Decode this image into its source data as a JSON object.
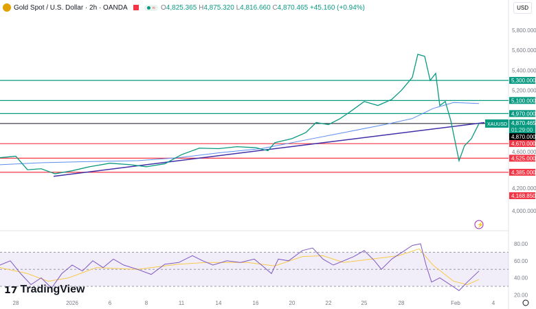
{
  "header": {
    "symbol": "Gold Spot / U.S. Dollar · 2h · OANDA",
    "o_label": "O",
    "o": "4,825.365",
    "h_label": "H",
    "h": "4,875.320",
    "l_label": "L",
    "l": "4,816.660",
    "c_label": "C",
    "c": "4,870.465",
    "change": "+45.160 (+0.94%)",
    "currency": "USD"
  },
  "brand": "TradingView",
  "chart_data": {
    "type": "line",
    "title": "Gold Spot / U.S. Dollar 2h",
    "price_axis": {
      "ylim": [
        3950,
        5900
      ],
      "ticks": [
        "5,800.000",
        "5,600.000",
        "5,400.000",
        "5,200.000",
        "4,600.000",
        "4,200.000",
        "4,000.000"
      ],
      "tick_values": [
        5800,
        5600,
        5400,
        5200,
        4600,
        4200,
        4000
      ]
    },
    "x_ticks": [
      {
        "label": "28",
        "t": 23
      },
      {
        "label": "2026",
        "t": 105
      },
      {
        "label": "6",
        "t": 160
      },
      {
        "label": "8",
        "t": 213
      },
      {
        "label": "11",
        "t": 264
      },
      {
        "label": "14",
        "t": 318
      },
      {
        "label": "16",
        "t": 372
      },
      {
        "label": "20",
        "t": 425
      },
      {
        "label": "22",
        "t": 478
      },
      {
        "label": "25",
        "t": 530
      },
      {
        "label": "28",
        "t": 584
      },
      {
        "label": "Feb",
        "t": 663
      },
      {
        "label": "4",
        "t": 718
      }
    ],
    "xlim": [
      0,
      740
    ],
    "close": [
      [
        0,
        4530
      ],
      [
        23,
        4545
      ],
      [
        40,
        4410
      ],
      [
        60,
        4420
      ],
      [
        80,
        4370
      ],
      [
        105,
        4400
      ],
      [
        130,
        4440
      ],
      [
        160,
        4475
      ],
      [
        190,
        4460
      ],
      [
        213,
        4440
      ],
      [
        240,
        4470
      ],
      [
        264,
        4560
      ],
      [
        290,
        4625
      ],
      [
        318,
        4620
      ],
      [
        345,
        4640
      ],
      [
        372,
        4630
      ],
      [
        390,
        4600
      ],
      [
        400,
        4680
      ],
      [
        425,
        4720
      ],
      [
        445,
        4780
      ],
      [
        460,
        4880
      ],
      [
        478,
        4860
      ],
      [
        495,
        4920
      ],
      [
        510,
        4990
      ],
      [
        530,
        5090
      ],
      [
        550,
        5050
      ],
      [
        570,
        5110
      ],
      [
        584,
        5200
      ],
      [
        600,
        5330
      ],
      [
        608,
        5560
      ],
      [
        618,
        5540
      ],
      [
        626,
        5300
      ],
      [
        634,
        5370
      ],
      [
        640,
        5050
      ],
      [
        648,
        5090
      ],
      [
        656,
        4900
      ],
      [
        662,
        4700
      ],
      [
        668,
        4500
      ],
      [
        676,
        4650
      ],
      [
        686,
        4720
      ],
      [
        697,
        4870
      ]
    ],
    "moving_average": [
      [
        0,
        4460
      ],
      [
        60,
        4480
      ],
      [
        120,
        4490
      ],
      [
        200,
        4500
      ],
      [
        260,
        4530
      ],
      [
        320,
        4580
      ],
      [
        380,
        4620
      ],
      [
        440,
        4700
      ],
      [
        500,
        4780
      ],
      [
        560,
        4860
      ],
      [
        600,
        4920
      ],
      [
        630,
        5020
      ],
      [
        660,
        5080
      ],
      [
        697,
        5070
      ]
    ],
    "trendline": [
      [
        78,
        4345
      ],
      [
        705,
        4880
      ]
    ],
    "levels": [
      {
        "value": 5300,
        "label": "5,300.000",
        "color": "#089981"
      },
      {
        "value": 5100,
        "label": "5,100.000",
        "color": "#089981"
      },
      {
        "value": 4970,
        "label": "4,970.000",
        "color": "#089981"
      },
      {
        "value": 4670,
        "label": "4,670.000",
        "color": "#f23645"
      },
      {
        "value": 4525,
        "label": "4,525.000",
        "color": "#f23645"
      },
      {
        "value": 4385,
        "label": "4,385.000",
        "color": "#f23645"
      }
    ],
    "last_price": {
      "value": 4870.465,
      "label": "4,870.465",
      "countdown": "01:29:00",
      "symbol": "XAUUSD"
    },
    "crosshair": {
      "value": 4870,
      "label": "4,870.000"
    },
    "low_marker": {
      "value": 4168.85,
      "label": "4,168.850"
    },
    "rsi": {
      "ylim": [
        15,
        90
      ],
      "ticks": [
        "80.00",
        "60.00",
        "40.00",
        "20.00"
      ],
      "tick_values": [
        80,
        60,
        40,
        20
      ],
      "band": [
        30,
        70
      ],
      "mid": 50,
      "values": [
        [
          0,
          55
        ],
        [
          15,
          60
        ],
        [
          30,
          45
        ],
        [
          45,
          32
        ],
        [
          60,
          40
        ],
        [
          75,
          28
        ],
        [
          90,
          45
        ],
        [
          105,
          55
        ],
        [
          120,
          48
        ],
        [
          135,
          60
        ],
        [
          150,
          52
        ],
        [
          165,
          62
        ],
        [
          180,
          55
        ],
        [
          200,
          50
        ],
        [
          220,
          44
        ],
        [
          240,
          56
        ],
        [
          260,
          58
        ],
        [
          280,
          66
        ],
        [
          295,
          60
        ],
        [
          310,
          55
        ],
        [
          330,
          60
        ],
        [
          350,
          58
        ],
        [
          370,
          62
        ],
        [
          385,
          52
        ],
        [
          395,
          45
        ],
        [
          405,
          62
        ],
        [
          420,
          60
        ],
        [
          440,
          72
        ],
        [
          455,
          75
        ],
        [
          470,
          62
        ],
        [
          485,
          55
        ],
        [
          500,
          60
        ],
        [
          515,
          65
        ],
        [
          530,
          72
        ],
        [
          545,
          60
        ],
        [
          555,
          50
        ],
        [
          570,
          62
        ],
        [
          585,
          70
        ],
        [
          600,
          78
        ],
        [
          612,
          80
        ],
        [
          620,
          55
        ],
        [
          628,
          35
        ],
        [
          640,
          40
        ],
        [
          655,
          32
        ],
        [
          668,
          25
        ],
        [
          680,
          35
        ],
        [
          697,
          48
        ]
      ],
      "signal": [
        [
          0,
          52
        ],
        [
          40,
          45
        ],
        [
          70,
          36
        ],
        [
          100,
          40
        ],
        [
          140,
          52
        ],
        [
          200,
          50
        ],
        [
          260,
          56
        ],
        [
          300,
          58
        ],
        [
          360,
          58
        ],
        [
          400,
          54
        ],
        [
          440,
          65
        ],
        [
          470,
          66
        ],
        [
          500,
          58
        ],
        [
          540,
          62
        ],
        [
          580,
          66
        ],
        [
          610,
          74
        ],
        [
          630,
          55
        ],
        [
          660,
          36
        ],
        [
          680,
          32
        ],
        [
          697,
          38
        ]
      ]
    }
  }
}
